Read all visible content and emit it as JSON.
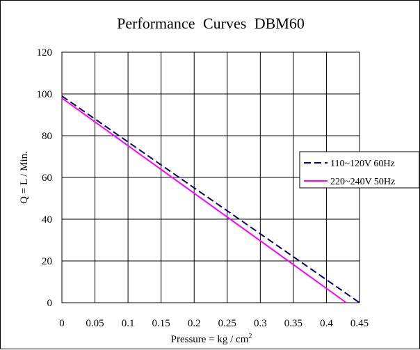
{
  "chart_data": {
    "type": "line",
    "title": "Performance Curves DBM60",
    "xlabel": "Pressure = kg / cm",
    "xlabel_superscript": "2",
    "ylabel": "Q = L / Min.",
    "xlim": [
      0,
      0.45
    ],
    "ylim": [
      0,
      120
    ],
    "x_ticks": [
      "0",
      "0.05",
      "0.1",
      "0.15",
      "0.2",
      "0.25",
      "0.3",
      "0.35",
      "0.4",
      "0.45"
    ],
    "y_ticks": [
      "0",
      "20",
      "40",
      "60",
      "80",
      "100",
      "120"
    ],
    "grid": true,
    "legend_position": "right",
    "series": [
      {
        "name": "110~120V 60Hz",
        "x": [
          0,
          0.45
        ],
        "y": [
          99,
          0
        ],
        "color": "#000066",
        "style": "dashed"
      },
      {
        "name": "220~240V 50Hz",
        "x": [
          0,
          0.43
        ],
        "y": [
          98,
          0
        ],
        "color": "#ff00ff",
        "style": "solid"
      }
    ]
  }
}
